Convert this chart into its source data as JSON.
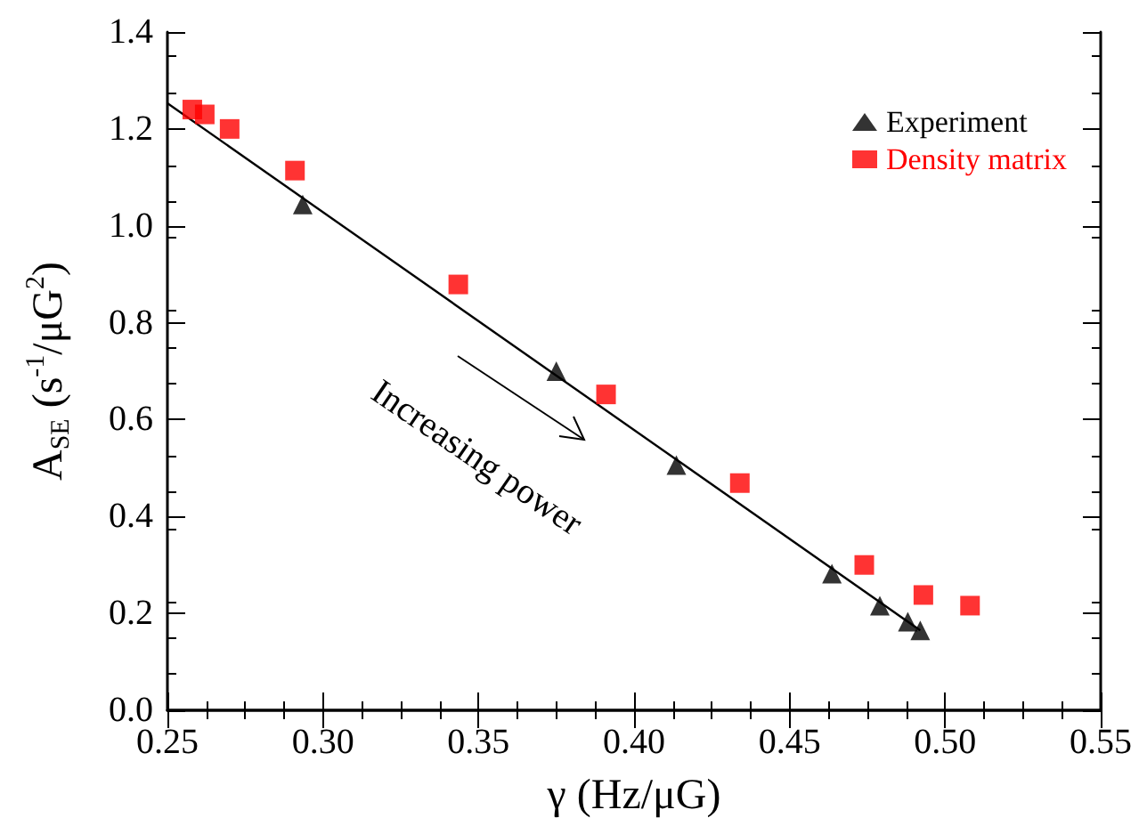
{
  "chart_data": {
    "type": "scatter",
    "xlabel": "γ (Hz/μG)",
    "ylabel": "A$_{SE}$ (s$^{-1}$/μG$^{2}$)",
    "xlim": [
      0.25,
      0.55
    ],
    "xticks": [
      {
        "value": 0.25,
        "label": "0.25"
      },
      {
        "value": 0.3,
        "label": "0.30"
      },
      {
        "value": 0.35,
        "label": "0.35"
      },
      {
        "value": 0.4,
        "label": "0.40"
      },
      {
        "value": 0.45,
        "label": "0.45"
      },
      {
        "value": 0.5,
        "label": "0.50"
      },
      {
        "value": 0.55,
        "label": "0.55"
      }
    ],
    "ylim": [
      0,
      1.4
    ],
    "yticks": [
      {
        "value": 0,
        "label": "0.0"
      },
      {
        "value": 0.2,
        "label": "0.2"
      },
      {
        "value": 0.4,
        "label": "0.4"
      },
      {
        "value": 0.6,
        "label": "0.6"
      },
      {
        "value": 0.8,
        "label": "0.8"
      },
      {
        "value": 1.0,
        "label": "1.0"
      },
      {
        "value": 1.2,
        "label": "1.2"
      },
      {
        "value": 1.4,
        "label": "1.4"
      }
    ],
    "grid": false,
    "legend": "top right",
    "annotations": [
      "Increasing power"
    ],
    "series": [
      {
        "name": "Experiment",
        "marker": "triangle",
        "color": "#000000",
        "x": [
          0.2935,
          0.375,
          0.4136,
          0.4636,
          0.479,
          0.488,
          0.492
        ],
        "values": [
          1.044,
          0.7,
          0.506,
          0.282,
          0.216,
          0.183,
          0.165
        ]
      },
      {
        "name": "Density matrix",
        "marker": "square",
        "color": "#ff0000",
        "x": [
          0.258,
          0.262,
          0.27,
          0.291,
          0.3435,
          0.391,
          0.434,
          0.474,
          0.493,
          0.508
        ],
        "values": [
          1.24,
          1.23,
          1.2,
          1.114,
          0.879,
          0.652,
          0.469,
          0.3,
          0.238,
          0.216
        ]
      },
      {
        "type": "line",
        "marker": "none",
        "color": "#000000",
        "x": [
          0.25,
          0.492
        ],
        "values": [
          1.253,
          0.165
        ]
      }
    ]
  }
}
